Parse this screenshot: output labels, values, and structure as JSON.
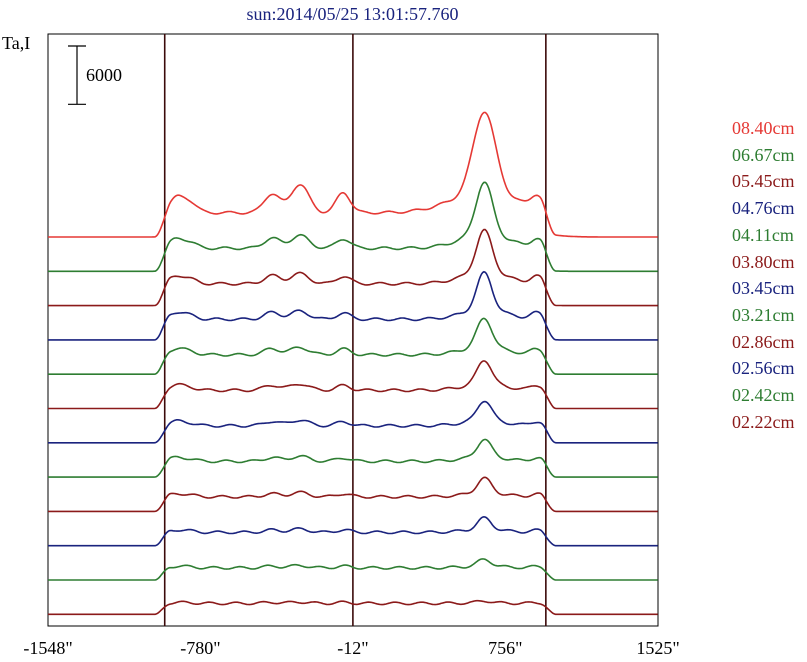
{
  "chart_data": {
    "type": "line",
    "title": "sun:2014/05/25 13:01:57.760",
    "ylabel": "Ta,I",
    "scale_bar_value": 6000,
    "scale_bar_label": "6000",
    "xlim": [
      -1548,
      1525
    ],
    "x_ticks": [
      {
        "value": -1548,
        "label": "-1548\""
      },
      {
        "value": -780,
        "label": "-780\""
      },
      {
        "value": -12,
        "label": "-12\""
      },
      {
        "value": 756,
        "label": "756\""
      },
      {
        "value": 1525,
        "label": "1525\""
      }
    ],
    "vertical_lines": [
      -960,
      -12,
      960
    ],
    "stacked": true,
    "series": [
      {
        "name": "08.40cm",
        "color": "#e53935",
        "baseline": 0,
        "limb": 1900,
        "p1": 2800,
        "p2": 4200,
        "p3": 3000,
        "plage": 12000,
        "plage_w": 55
      },
      {
        "name": "06.67cm",
        "color": "#2e7d32",
        "baseline": 0,
        "limb": 1200,
        "p1": 1500,
        "p2": 1900,
        "p3": 1400,
        "plage": 7800,
        "plage_w": 42
      },
      {
        "name": "05.45cm",
        "color": "#8b1a1a",
        "baseline": 0,
        "limb": 1000,
        "p1": 1200,
        "p2": 1500,
        "p3": 1100,
        "plage": 6300,
        "plage_w": 40
      },
      {
        "name": "04.76cm",
        "color": "#1a237e",
        "baseline": 0,
        "limb": 900,
        "p1": 1000,
        "p2": 1200,
        "p3": 900,
        "plage": 5500,
        "plage_w": 38
      },
      {
        "name": "04.11cm",
        "color": "#2e7d32",
        "baseline": 0,
        "limb": 800,
        "p1": 900,
        "p2": 1100,
        "p3": 850,
        "plage": 4300,
        "plage_w": 38
      },
      {
        "name": "03.80cm",
        "color": "#8b1a1a",
        "baseline": 0,
        "limb": 700,
        "p1": 750,
        "p2": 950,
        "p3": 700,
        "plage": 3600,
        "plage_w": 36
      },
      {
        "name": "03.45cm",
        "color": "#1a237e",
        "baseline": 0,
        "limb": 600,
        "p1": 650,
        "p2": 850,
        "p3": 600,
        "plage": 3000,
        "plage_w": 36
      },
      {
        "name": "03.21cm",
        "color": "#2e7d32",
        "baseline": 0,
        "limb": 500,
        "p1": 550,
        "p2": 750,
        "p3": 500,
        "plage": 2600,
        "plage_w": 35
      },
      {
        "name": "02.86cm",
        "color": "#8b1a1a",
        "baseline": 0,
        "limb": 400,
        "p1": 450,
        "p2": 650,
        "p3": 450,
        "plage": 2200,
        "plage_w": 35
      },
      {
        "name": "02.56cm",
        "color": "#1a237e",
        "baseline": 0,
        "limb": 300,
        "p1": 350,
        "p2": 500,
        "p3": 350,
        "plage": 1700,
        "plage_w": 34
      },
      {
        "name": "02.42cm",
        "color": "#2e7d32",
        "baseline": 0,
        "limb": 200,
        "p1": 250,
        "p2": 350,
        "p3": 250,
        "plage": 1000,
        "plage_w": 34
      },
      {
        "name": "02.22cm",
        "color": "#8b1a1a",
        "baseline": 0,
        "limb": 100,
        "p1": 150,
        "p2": 200,
        "p3": 150,
        "plage": 300,
        "plage_w": 34
      }
    ]
  }
}
